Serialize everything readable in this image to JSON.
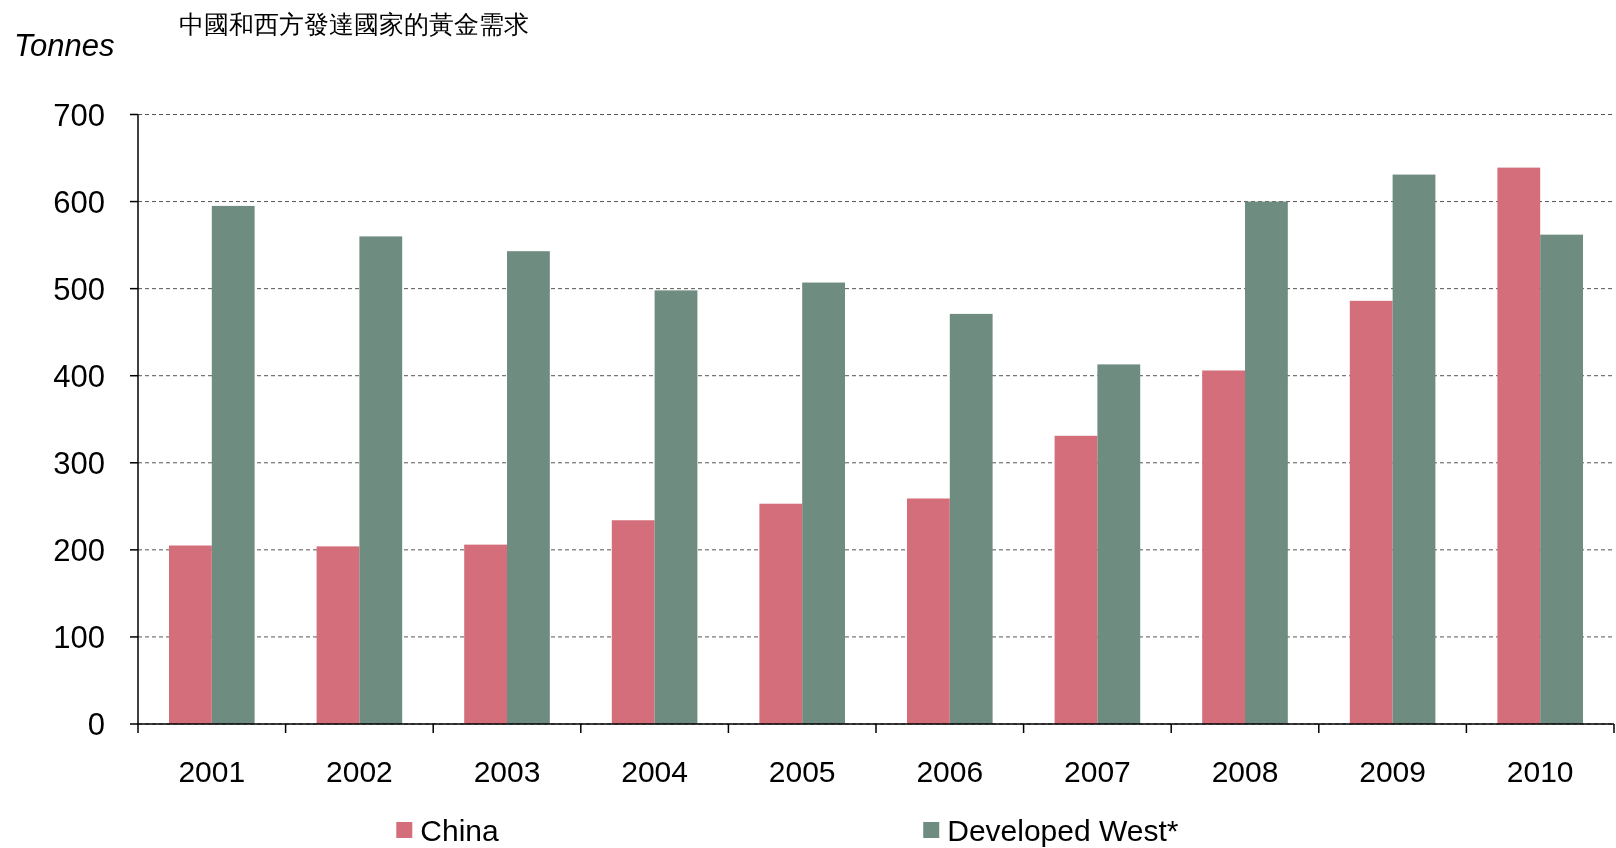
{
  "chart_data": {
    "type": "bar",
    "title": "中國和西方發達國家的黃金需求",
    "ylabel": "Tonnes",
    "categories": [
      "2001",
      "2002",
      "2003",
      "2004",
      "2005",
      "2006",
      "2007",
      "2008",
      "2009",
      "2010"
    ],
    "series": [
      {
        "name": "China",
        "color": "#d46e7a",
        "values": [
          205,
          204,
          206,
          234,
          253,
          259,
          331,
          406,
          486,
          639
        ]
      },
      {
        "name": "Developed West*",
        "color": "#6e8c80",
        "values": [
          595,
          560,
          543,
          498,
          507,
          471,
          413,
          600,
          631,
          562
        ]
      }
    ],
    "ylim": [
      0,
      700
    ],
    "yticks": [
      0,
      100,
      200,
      300,
      400,
      500,
      600,
      700
    ],
    "grid": "y",
    "legend": "bottom"
  }
}
